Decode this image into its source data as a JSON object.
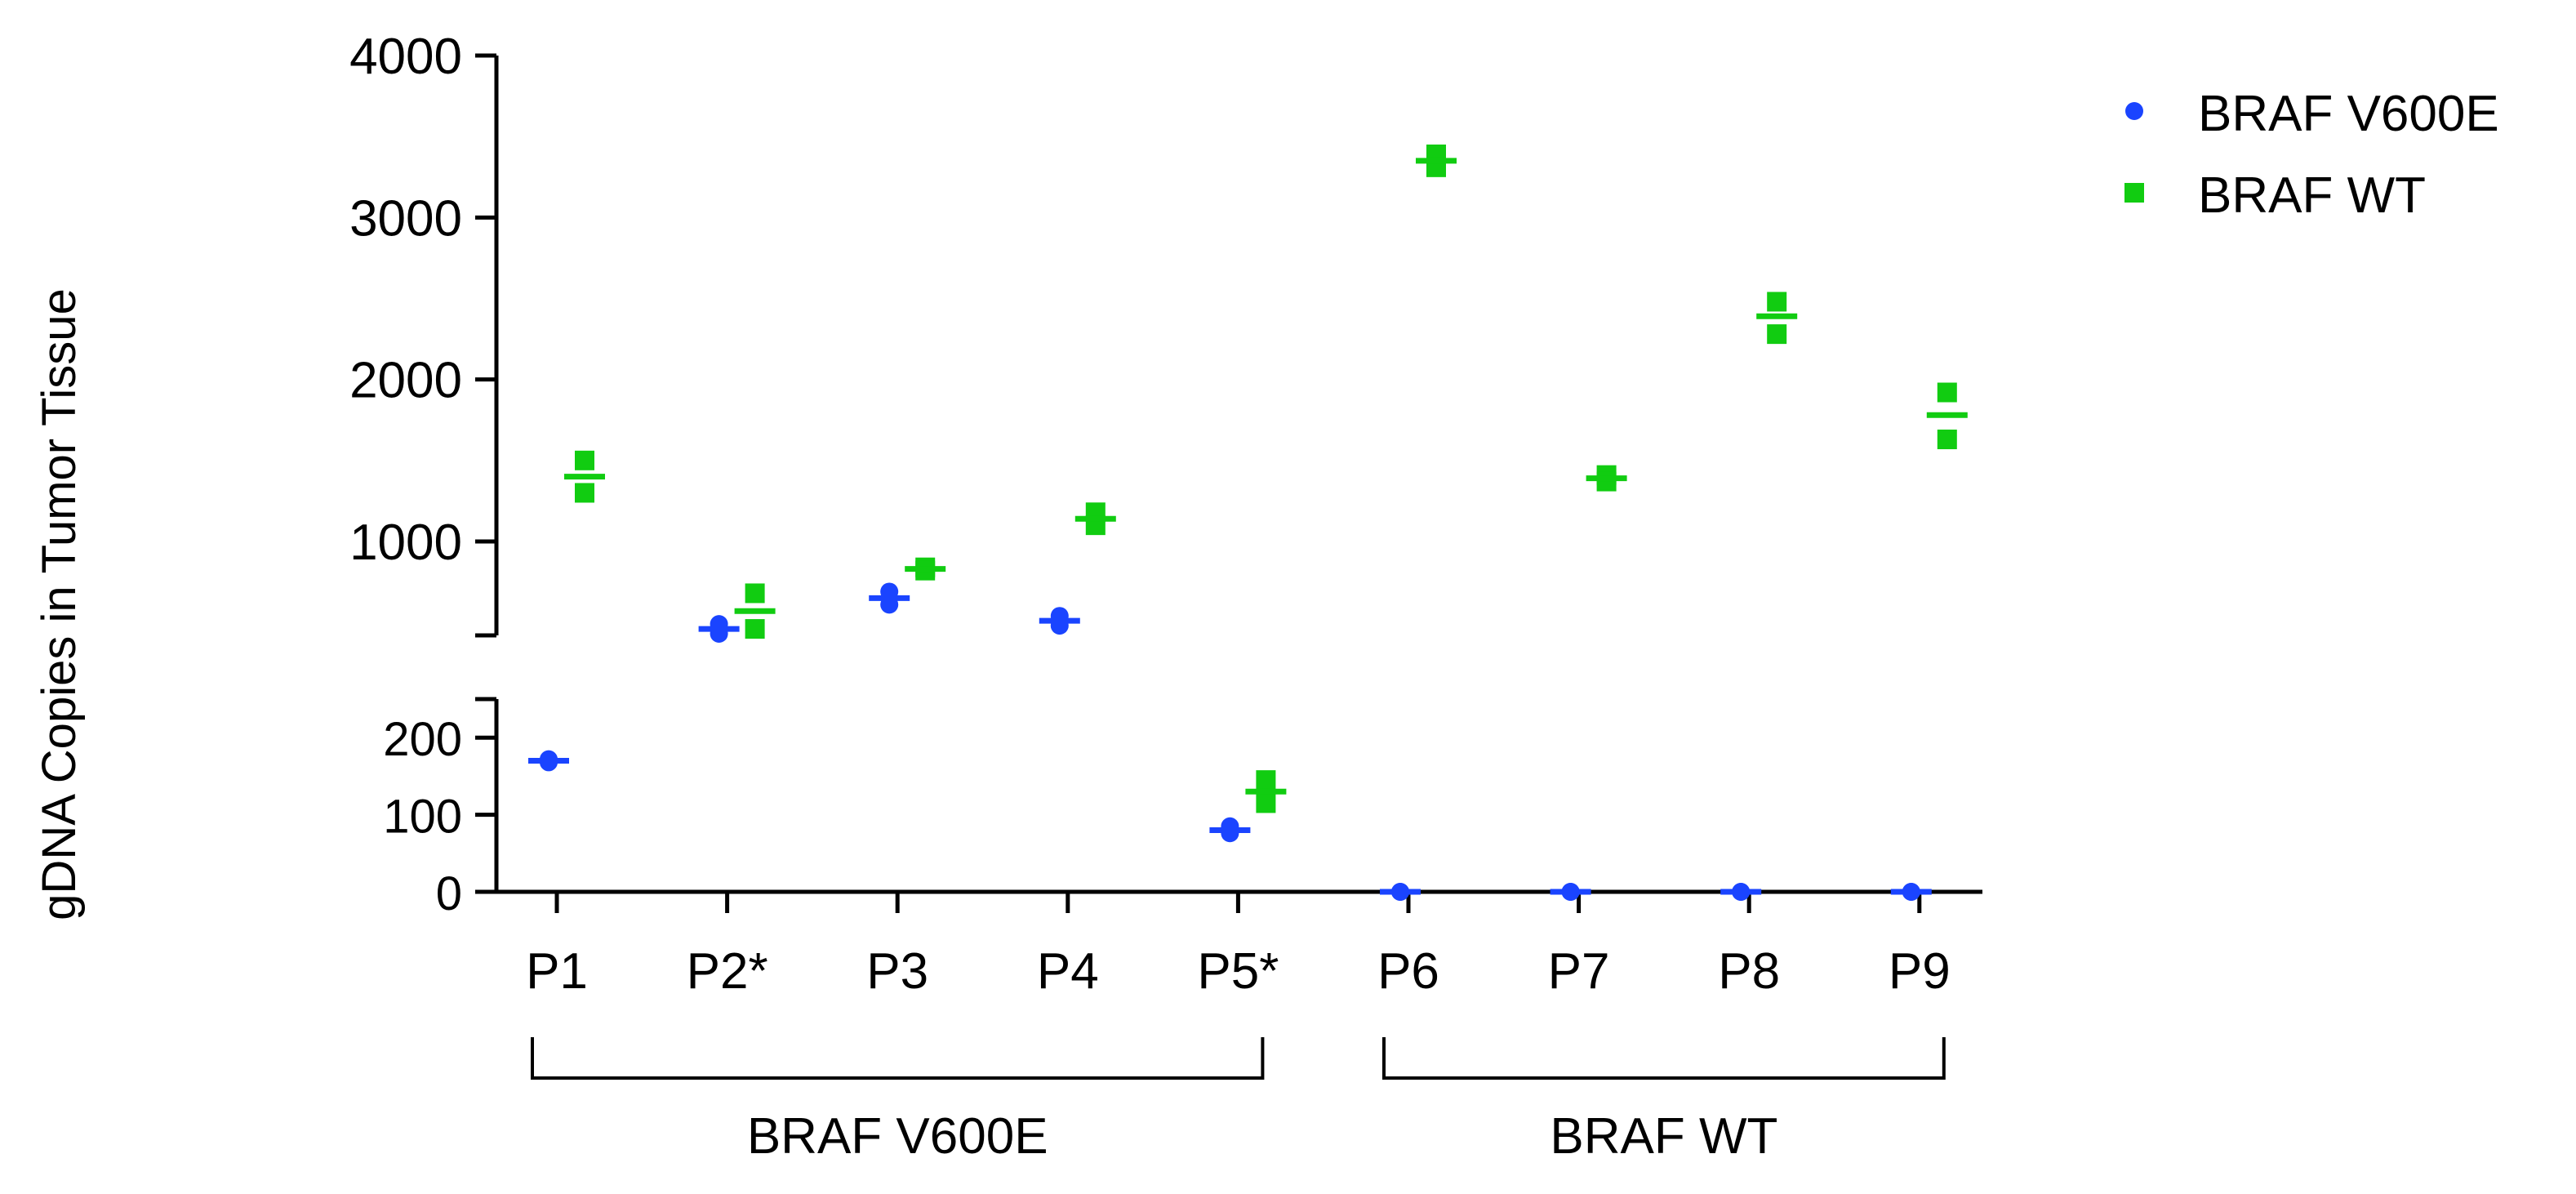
{
  "colors": {
    "v600e": "#1a44ff",
    "wt": "#11cc11",
    "axis": "#000000"
  },
  "chart_data": {
    "type": "scatter",
    "ylabel": "gDNA Copies in Tumor Tissue",
    "y_axis": {
      "broken": true,
      "lower_segment": {
        "range": [
          0,
          250
        ],
        "ticks": [
          "0",
          "100",
          "200"
        ]
      },
      "upper_segment": {
        "range": [
          420,
          4000
        ],
        "ticks": [
          "1000",
          "2000",
          "3000",
          "4000"
        ]
      }
    },
    "categories": [
      "P1",
      "P2*",
      "P3",
      "P4",
      "P5*",
      "P6",
      "P7",
      "P8",
      "P9"
    ],
    "legend": {
      "placement": "top-right",
      "entries": [
        {
          "label": "BRAF V600E",
          "series": "v600e"
        },
        {
          "label": "BRAF WT",
          "series": "wt"
        }
      ]
    },
    "groups": [
      {
        "label": "BRAF V600E",
        "from": "P1",
        "to": "P5*"
      },
      {
        "label": "BRAF WT",
        "from": "P6",
        "to": "P9"
      }
    ],
    "series": [
      {
        "name": "BRAF V600E",
        "key": "v600e",
        "marker": "circle",
        "means": [
          170,
          460,
          650,
          510,
          80,
          0,
          0,
          0,
          0
        ],
        "points": [
          [
            172,
            168
          ],
          [
            490,
            430
          ],
          [
            690,
            610
          ],
          [
            540,
            480
          ],
          [
            85,
            76
          ],
          [
            0,
            0
          ],
          [
            0,
            0
          ],
          [
            0,
            0
          ],
          [
            0,
            0
          ]
        ]
      },
      {
        "name": "BRAF WT",
        "key": "wt",
        "marker": "square",
        "means": [
          1400,
          570,
          830,
          1140,
          130,
          3350,
          1390,
          2390,
          1780
        ],
        "points": [
          [
            1500,
            1300
          ],
          [
            680,
            460
          ],
          [
            840,
            820
          ],
          [
            1180,
            1100
          ],
          [
            145,
            115
          ],
          [
            3390,
            3310
          ],
          [
            1410,
            1370
          ],
          [
            2480,
            2280
          ],
          [
            1920,
            1630
          ]
        ]
      }
    ]
  }
}
